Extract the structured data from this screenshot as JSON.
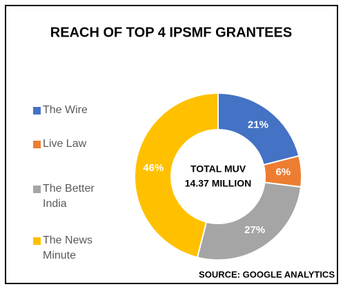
{
  "chart_data": {
    "type": "donut",
    "title": "REACH OF TOP 4 IPSMF GRANTEES",
    "categories": [
      "The Wire",
      "Live Law",
      "The Better India",
      "The News Minute"
    ],
    "values": [
      21,
      6,
      27,
      46
    ],
    "value_labels": [
      "21%",
      "6%",
      "27%",
      "46%"
    ],
    "colors": [
      "#4472c4",
      "#ed7d31",
      "#a5a5a5",
      "#ffc000"
    ],
    "center_text": [
      "TOTAL MUV",
      "14.37 MILLION"
    ],
    "source": "SOURCE: GOOGLE ANALYTICS",
    "legend": "left"
  }
}
